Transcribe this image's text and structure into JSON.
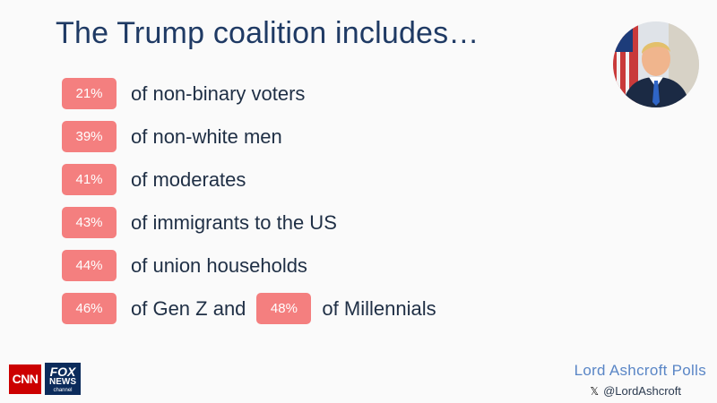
{
  "title": "The Trump coalition includes…",
  "items": [
    {
      "badge": "21%",
      "text": "of non-binary voters"
    },
    {
      "badge": "39%",
      "text": "of non-white men"
    },
    {
      "badge": "41%",
      "text": "of moderates"
    },
    {
      "badge": "43%",
      "text": "of immigrants to the US"
    },
    {
      "badge": "44%",
      "text": "of union households"
    }
  ],
  "last_row": {
    "badge1": "46%",
    "text1": "of Gen Z and",
    "badge2": "48%",
    "text2": "of Millennials"
  },
  "logos": {
    "cnn": "CNN",
    "fox": "FOX",
    "news": "NEWS",
    "channel": "channel"
  },
  "footer": {
    "brand": "Lord Ashcroft Polls",
    "x_icon": "𝕏",
    "handle": "@LordAshcroft"
  },
  "colors": {
    "badge": "#f47f7f",
    "title": "#1f3a64",
    "brand": "#5a86c6"
  }
}
